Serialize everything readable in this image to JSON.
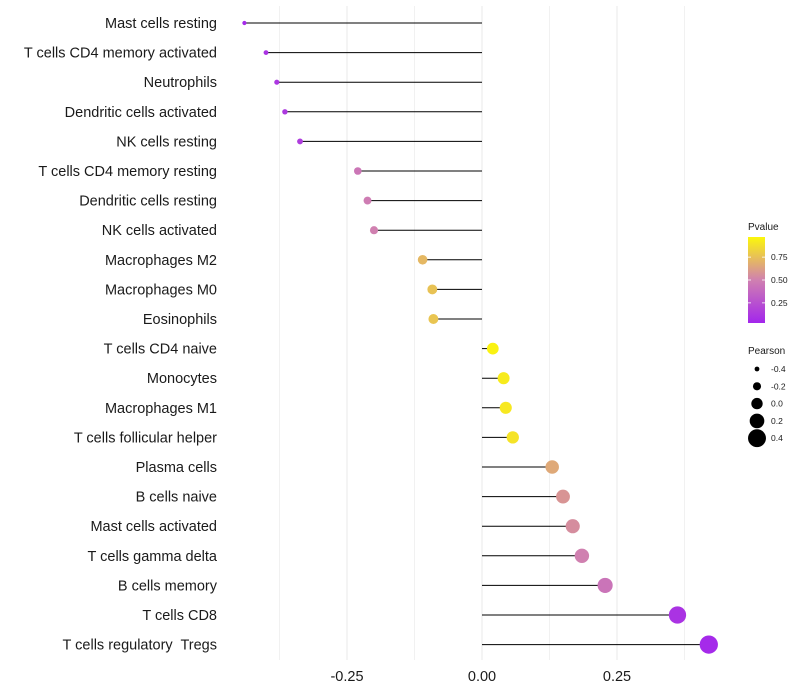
{
  "chart_data": {
    "type": "lollipop",
    "x_ticks": [
      -0.25,
      0.0,
      0.25
    ],
    "x_tick_labels": [
      "-0.25",
      "0.00",
      "0.25"
    ],
    "xlim": [
      -0.5,
      0.57
    ],
    "baseline": 0.0,
    "grid": true,
    "categories": [
      "Mast cells resting",
      "T cells CD4 memory activated",
      "Neutrophils",
      "Dendritic cells activated",
      "NK cells resting",
      "T cells CD4 memory resting",
      "Dendritic cells resting",
      "NK cells activated",
      "Macrophages M2",
      "Macrophages M0",
      "Eosinophils",
      "T cells CD4 naive",
      "Monocytes",
      "Macrophages M1",
      "T cells follicular helper",
      "Plasma cells",
      "B cells naive",
      "Mast cells activated",
      "T cells gamma delta",
      "B cells memory",
      "T cells CD8",
      "T cells regulatory  Tregs"
    ],
    "pearson": [
      -0.44,
      -0.4,
      -0.38,
      -0.365,
      -0.337,
      -0.23,
      -0.212,
      -0.2,
      -0.11,
      -0.092,
      -0.09,
      0.02,
      0.04,
      0.044,
      0.057,
      0.13,
      0.15,
      0.168,
      0.185,
      0.228,
      0.362,
      0.42
    ],
    "pvalue": [
      0.05,
      0.1,
      0.12,
      0.13,
      0.15,
      0.45,
      0.48,
      0.5,
      0.72,
      0.76,
      0.77,
      0.95,
      0.92,
      0.91,
      0.89,
      0.66,
      0.58,
      0.55,
      0.5,
      0.44,
      0.1,
      0.05
    ],
    "legend_pvalue": {
      "title": "Pvalue",
      "ticks": [
        "0.75",
        "0.50",
        "0.25"
      ],
      "tick_values": [
        0.75,
        0.5,
        0.25
      ],
      "range": [
        0.03,
        0.97
      ],
      "color_low": "#a020f0",
      "color_mid": "#d080b0",
      "color_high": "#ffff00"
    },
    "legend_pearson": {
      "title": "Pearson",
      "labels": [
        "-0.4",
        "-0.2",
        "0.0",
        "0.2",
        "0.4"
      ],
      "values": [
        -0.4,
        -0.2,
        0.0,
        0.2,
        0.4
      ]
    }
  }
}
